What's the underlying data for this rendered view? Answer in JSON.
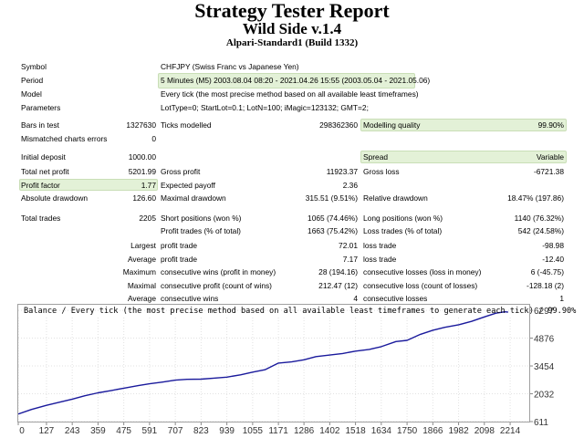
{
  "header": {
    "title": "Strategy Tester Report",
    "ea_name": "Wild Side v.1.4",
    "server": "Alpari-Standard1 (Build 1332)"
  },
  "info": {
    "symbol_label": "Symbol",
    "symbol_value": "CHFJPY (Swiss Franc vs Japanese Yen)",
    "period_label": "Period",
    "period_value": "5 Minutes (M5) 2003.08.04 08:20 - 2021.04.26 15:55 (2003.05.04 - 2021.05.06)",
    "model_label": "Model",
    "model_value": "Every tick (the most precise method based on all available least timeframes)",
    "params_label": "Parameters",
    "params_value": "LotType=0; StartLot=0.1; LotN=100; iMagic=123132; GMT=2;"
  },
  "stats": {
    "bars_label": "Bars in test",
    "bars_value": "1327630",
    "ticks_label": "Ticks modelled",
    "ticks_value": "298362360",
    "quality_label": "Modelling quality",
    "quality_value": "99.90%",
    "mismatch_label": "Mismatched charts errors",
    "mismatch_value": "0",
    "deposit_label": "Initial deposit",
    "deposit_value": "1000.00",
    "spread_label": "Spread",
    "spread_value": "Variable",
    "netprofit_label": "Total net profit",
    "netprofit_value": "5201.99",
    "grossprofit_label": "Gross profit",
    "grossprofit_value": "11923.37",
    "grossloss_label": "Gross loss",
    "grossloss_value": "-6721.38",
    "pf_label": "Profit factor",
    "pf_value": "1.77",
    "payoff_label": "Expected payoff",
    "payoff_value": "2.36",
    "absdd_label": "Absolute drawdown",
    "absdd_value": "126.60",
    "maxdd_label": "Maximal drawdown",
    "maxdd_value": "315.51 (9.51%)",
    "reldd_label": "Relative drawdown",
    "reldd_value": "18.47% (197.86)",
    "trades_label": "Total trades",
    "trades_value": "2205",
    "short_label": "Short positions (won %)",
    "short_value": "1065 (74.46%)",
    "long_label": "Long positions (won %)",
    "long_value": "1140 (76.32%)",
    "proftrades_label": "Profit trades (% of total)",
    "proftrades_value": "1663 (75.42%)",
    "losstrades_label": "Loss trades (% of total)",
    "losstrades_value": "542 (24.58%)",
    "largest_label": "Largest",
    "largest_profit_label": "profit trade",
    "largest_profit_value": "72.01",
    "largest_loss_label": "loss trade",
    "largest_loss_value": "-98.98",
    "average_label": "Average",
    "average_profit_label": "profit trade",
    "average_profit_value": "7.17",
    "average_loss_label": "loss trade",
    "average_loss_value": "-12.40",
    "maximum_label": "Maximum",
    "maxwins_label": "consecutive wins (profit in money)",
    "maxwins_value": "28 (194.16)",
    "maxlosses_label": "consecutive losses (loss in money)",
    "maxlosses_value": "6 (-45.75)",
    "maximal_label": "Maximal",
    "maxprofit_label": "consecutive profit (count of wins)",
    "maxprofit_value": "212.47 (12)",
    "maxloss_label": "consecutive loss (count of losses)",
    "maxloss_value": "-128.18 (2)",
    "average2_label": "Average",
    "avgwins_label": "consecutive wins",
    "avgwins_value": "4",
    "avglosses_label": "consecutive losses",
    "avglosses_value": "1"
  },
  "chart_data": {
    "type": "line",
    "title": "Balance / Every tick (the most precise method based on all available least timeframes to generate each tick) / 99.90%",
    "x_ticks": [
      "0",
      "127",
      "243",
      "359",
      "475",
      "591",
      "707",
      "823",
      "939",
      "1055",
      "1171",
      "1286",
      "1402",
      "1518",
      "1634",
      "1750",
      "1866",
      "1982",
      "2098",
      "2214"
    ],
    "x_tick_values": [
      0,
      127,
      243,
      359,
      475,
      591,
      707,
      823,
      939,
      1055,
      1171,
      1286,
      1402,
      1518,
      1634,
      1750,
      1866,
      1982,
      2098,
      2214
    ],
    "y_ticks": [
      "6297",
      "4876",
      "3454",
      "2032",
      "611"
    ],
    "y_tick_values": [
      6297,
      4876,
      3454,
      2032,
      611
    ],
    "xlim": [
      0,
      2300
    ],
    "ylim": [
      611,
      6580
    ],
    "line_color": "#1a1a9c",
    "series": [
      {
        "x": [
          0,
          60,
          127,
          200,
          243,
          300,
          359,
          420,
          475,
          540,
          591,
          650,
          707,
          760,
          823,
          880,
          939,
          1000,
          1055,
          1110,
          1171,
          1230,
          1286,
          1340,
          1402,
          1460,
          1518,
          1580,
          1634,
          1700,
          1750,
          1810,
          1866,
          1920,
          1982,
          2040,
          2098,
          2150,
          2190,
          2205
        ],
        "values": [
          1000,
          1230,
          1440,
          1640,
          1760,
          1930,
          2080,
          2200,
          2320,
          2450,
          2540,
          2630,
          2730,
          2770,
          2780,
          2830,
          2880,
          3000,
          3140,
          3260,
          3600,
          3660,
          3770,
          3930,
          4010,
          4090,
          4210,
          4300,
          4440,
          4700,
          4760,
          5070,
          5280,
          5430,
          5560,
          5730,
          5960,
          6150,
          6220,
          6201
        ]
      }
    ]
  }
}
